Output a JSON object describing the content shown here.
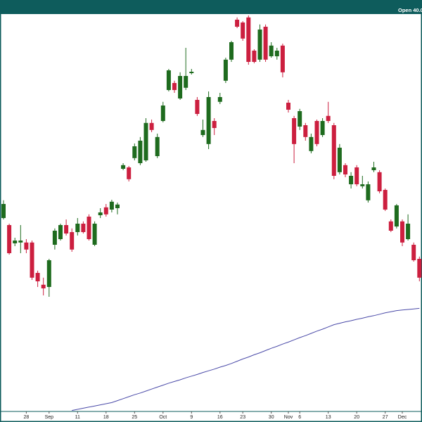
{
  "chart_data": {
    "type": "candlestick",
    "annotation": "Open 40.0",
    "up_color": "#1e6b1e",
    "down_color": "#cc1f3f",
    "ylim": [
      34.575,
      48.7
    ],
    "xticks": [
      {
        "value": 4,
        "label": "28"
      },
      {
        "value": 8,
        "label": "Sep"
      },
      {
        "value": 13,
        "label": "11"
      },
      {
        "value": 18,
        "label": "18"
      },
      {
        "value": 23,
        "label": "25"
      },
      {
        "value": 28,
        "label": "Oct"
      },
      {
        "value": 33,
        "label": "9"
      },
      {
        "value": 38,
        "label": "16"
      },
      {
        "value": 42,
        "label": "23"
      },
      {
        "value": 47,
        "label": "30"
      },
      {
        "value": 50,
        "label": "Nov"
      },
      {
        "value": 52,
        "label": "6"
      },
      {
        "value": 57,
        "label": "13"
      },
      {
        "value": 62,
        "label": "20"
      },
      {
        "value": 67,
        "label": "27"
      },
      {
        "value": 70,
        "label": "Dec"
      }
    ],
    "open": [
      41.45,
      41.2,
      40.55,
      40.58,
      40.58,
      40.58,
      39.5,
      39.08,
      39.0,
      40.5,
      40.7,
      41.2,
      40.95,
      40.95,
      41.25,
      41.5,
      40.5,
      41.55,
      41.83,
      41.75,
      41.8,
      43.2,
      43.25,
      43.58,
      43.4,
      43.5,
      44.83,
      43.65,
      44.9,
      46.0,
      46.25,
      45.7,
      46.08,
      46.6,
      45.65,
      44.4,
      44.08,
      44.9,
      45.58,
      46.33,
      47.08,
      48.5,
      48.4,
      48.58,
      47.4,
      47.08,
      48.25,
      47.2,
      47.2,
      47.58,
      45.55,
      45.0,
      44.7,
      44.75,
      43.83,
      44.9,
      44.4,
      45.08,
      44.75,
      43.08,
      43.33,
      42.65,
      43.25,
      42.58,
      42.08,
      43.15,
      43.08,
      42.45,
      41.33,
      41.15,
      41.33,
      40.7,
      40.5,
      40.0
    ],
    "high": [
      42.08,
      41.25,
      40.75,
      41.2,
      40.7,
      40.65,
      39.58,
      39.33,
      40.0,
      41.08,
      41.25,
      41.4,
      41.08,
      41.45,
      41.33,
      41.58,
      41.33,
      41.8,
      41.95,
      42.1,
      42.0,
      43.4,
      43.3,
      44.1,
      44.33,
      45.0,
      44.95,
      44.45,
      45.58,
      46.75,
      46.33,
      46.63,
      47.5,
      46.75,
      45.75,
      44.95,
      45.95,
      45.0,
      45.9,
      47.15,
      47.75,
      48.58,
      48.45,
      48.65,
      47.45,
      48.33,
      48.33,
      47.7,
      47.5,
      47.65,
      45.65,
      45.08,
      45.33,
      44.83,
      44.45,
      44.95,
      45.0,
      45.58,
      44.83,
      44.08,
      43.4,
      43.08,
      43.33,
      42.95,
      42.75,
      43.45,
      43.15,
      42.5,
      41.4,
      41.95,
      41.4,
      41.58,
      40.58,
      40.08
    ],
    "low": [
      41.4,
      40.15,
      40.45,
      40.2,
      40.2,
      39.25,
      39.0,
      38.7,
      38.65,
      40.33,
      40.65,
      40.83,
      40.25,
      40.83,
      40.9,
      40.65,
      40.45,
      41.45,
      41.5,
      41.65,
      41.58,
      43.15,
      42.75,
      43.5,
      43.33,
      43.45,
      44.5,
      43.58,
      44.85,
      45.95,
      45.9,
      45.65,
      46.0,
      46.55,
      45.08,
      44.33,
      43.9,
      44.4,
      45.5,
      46.25,
      47.0,
      48.2,
      47.75,
      46.9,
      46.95,
      47.0,
      47.0,
      47.15,
      47.08,
      46.45,
      45.2,
      43.4,
      44.58,
      44.2,
      43.75,
      44.0,
      44.33,
      44.83,
      42.83,
      43.0,
      42.9,
      42.5,
      42.58,
      42.5,
      42.0,
      43.08,
      42.33,
      41.7,
      40.95,
      41.08,
      40.45,
      40.65,
      39.9,
      39.2
    ],
    "close": [
      41.95,
      40.2,
      40.65,
      40.65,
      40.33,
      39.33,
      39.2,
      38.95,
      39.95,
      41.0,
      41.2,
      40.9,
      40.33,
      41.25,
      40.95,
      40.7,
      41.25,
      41.65,
      41.58,
      42.03,
      41.93,
      43.33,
      42.83,
      44.0,
      44.2,
      44.83,
      44.58,
      44.33,
      45.45,
      46.7,
      46.0,
      46.5,
      46.5,
      46.65,
      45.15,
      44.58,
      45.75,
      44.65,
      45.75,
      47.08,
      47.7,
      48.25,
      47.83,
      47.0,
      47.0,
      48.15,
      47.08,
      47.58,
      47.4,
      46.63,
      45.3,
      44.08,
      45.25,
      44.33,
      44.33,
      44.08,
      44.9,
      44.9,
      42.95,
      43.95,
      43.0,
      42.95,
      42.65,
      42.65,
      42.65,
      43.25,
      42.4,
      41.75,
      41.0,
      41.9,
      40.58,
      41.25,
      39.95,
      39.33
    ],
    "overlay": {
      "color": "#4a4aa8",
      "values": [
        null,
        null,
        null,
        null,
        null,
        null,
        null,
        null,
        null,
        null,
        null,
        null,
        34.61,
        34.65,
        34.69,
        34.73,
        34.77,
        34.81,
        34.85,
        34.89,
        34.96,
        35.03,
        35.1,
        35.17,
        35.23,
        35.3,
        35.37,
        35.44,
        35.51,
        35.58,
        35.64,
        35.7,
        35.77,
        35.83,
        35.89,
        35.96,
        36.02,
        36.08,
        36.15,
        36.21,
        36.28,
        36.36,
        36.44,
        36.51,
        36.59,
        36.66,
        36.74,
        36.82,
        36.89,
        36.97,
        37.04,
        37.12,
        37.2,
        37.27,
        37.35,
        37.43,
        37.5,
        37.58,
        37.66,
        37.71,
        37.76,
        37.8,
        37.85,
        37.89,
        37.94,
        37.98,
        38.03,
        38.08,
        38.12,
        38.16,
        38.18,
        38.2,
        38.22,
        38.24
      ]
    }
  }
}
